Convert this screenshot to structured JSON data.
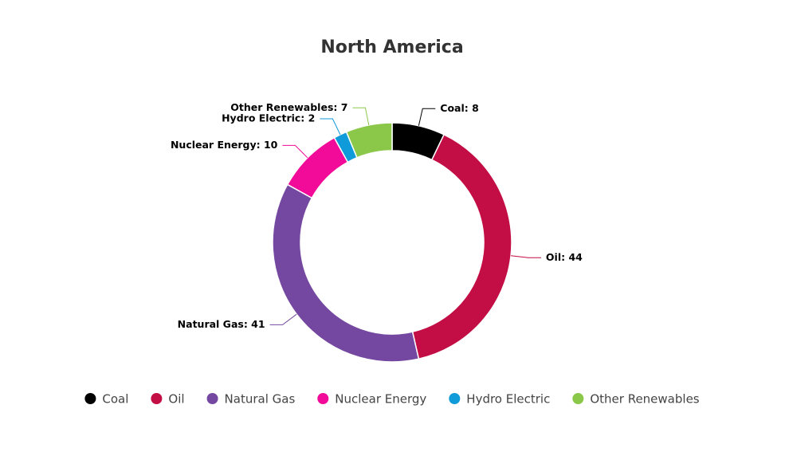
{
  "chart_data": {
    "type": "donut",
    "title": "North America",
    "categories": [
      "Coal",
      "Oil",
      "Natural Gas",
      "Nuclear Energy",
      "Hydro Electric",
      "Other Renewables"
    ],
    "values": [
      8,
      44,
      41,
      10,
      2,
      7
    ],
    "value_labels": [
      "Coal: 8",
      "Oil: 44",
      "Natural Gas: 41",
      "Nuclear Energy: 10",
      "Hydro Electric: 2",
      "Other Renewables: 7"
    ],
    "colors": [
      "#000000",
      "#c30d45",
      "#7448a0",
      "#f10b98",
      "#0f9ad9",
      "#8bc84a"
    ],
    "legend": "bottom"
  }
}
